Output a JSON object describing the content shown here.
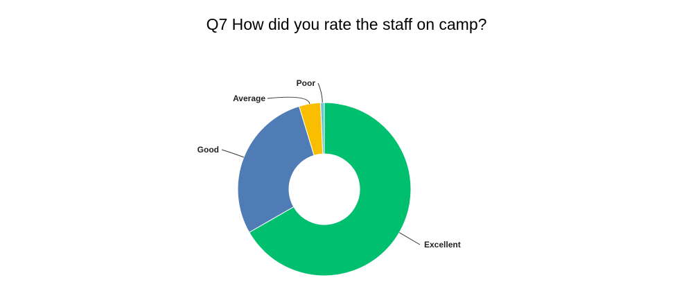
{
  "chart_data": {
    "type": "pie",
    "variant": "donut",
    "title": "Q7 How did you rate the staff on camp?",
    "categories": [
      "Excellent",
      "Good",
      "Average",
      "Poor"
    ],
    "values": [
      66.7,
      28.6,
      4.0,
      0.7
    ],
    "unit": "% of responses",
    "colors": [
      "#00bf6f",
      "#507cb6",
      "#f9be00",
      "#6bc8cd"
    ],
    "legend": "none",
    "labels": "outside with leader lines"
  }
}
